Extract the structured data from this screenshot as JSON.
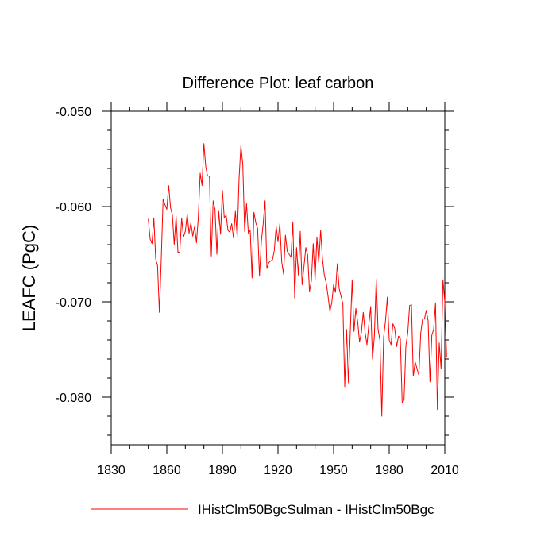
{
  "chart_data": {
    "type": "line",
    "title": "Difference Plot: leaf carbon",
    "xlabel": "",
    "ylabel": "LEAFC  (PgC)",
    "xlim": [
      1830,
      2010
    ],
    "ylim": [
      -0.085,
      -0.05
    ],
    "xticks": [
      1830,
      1860,
      1890,
      1920,
      1950,
      1980,
      2010
    ],
    "xtick_labels": [
      "1830",
      "1860",
      "1890",
      "1920",
      "1950",
      "1980",
      "2010"
    ],
    "yticks": [
      -0.05,
      -0.06,
      -0.07,
      -0.08
    ],
    "ytick_labels": [
      "-0.050",
      "-0.060",
      "-0.070",
      "-0.080"
    ],
    "grid": false,
    "legend_position": "bottom",
    "series": [
      {
        "name": "IHistClm50BgcSulman - IHistClm50Bgc",
        "color": "#ff0000",
        "x_start": 1850,
        "x_step": 1,
        "values": [
          -0.0613,
          -0.0634,
          -0.0639,
          -0.0612,
          -0.0655,
          -0.0662,
          -0.0711,
          -0.0655,
          -0.0592,
          -0.0598,
          -0.0603,
          -0.0578,
          -0.0601,
          -0.0609,
          -0.064,
          -0.061,
          -0.0648,
          -0.0648,
          -0.0612,
          -0.0632,
          -0.0626,
          -0.0608,
          -0.0628,
          -0.0617,
          -0.0631,
          -0.0621,
          -0.0638,
          -0.0611,
          -0.0565,
          -0.0578,
          -0.0534,
          -0.0558,
          -0.0568,
          -0.0568,
          -0.0652,
          -0.0594,
          -0.0603,
          -0.065,
          -0.0605,
          -0.0629,
          -0.0583,
          -0.0612,
          -0.0609,
          -0.0625,
          -0.0627,
          -0.0618,
          -0.0633,
          -0.0605,
          -0.0632,
          -0.057,
          -0.0536,
          -0.0556,
          -0.0626,
          -0.0597,
          -0.0628,
          -0.0625,
          -0.0675,
          -0.0606,
          -0.0617,
          -0.0623,
          -0.0673,
          -0.0637,
          -0.0618,
          -0.0594,
          -0.0665,
          -0.0659,
          -0.0657,
          -0.0656,
          -0.0646,
          -0.0621,
          -0.0637,
          -0.0618,
          -0.0658,
          -0.0671,
          -0.063,
          -0.0647,
          -0.065,
          -0.0653,
          -0.0616,
          -0.0696,
          -0.0643,
          -0.0672,
          -0.0626,
          -0.0682,
          -0.0663,
          -0.0643,
          -0.0651,
          -0.0689,
          -0.0678,
          -0.0639,
          -0.0677,
          -0.0632,
          -0.0659,
          -0.0625,
          -0.0655,
          -0.0672,
          -0.068,
          -0.0694,
          -0.071,
          -0.0701,
          -0.0682,
          -0.069,
          -0.066,
          -0.0686,
          -0.0694,
          -0.0702,
          -0.0789,
          -0.0729,
          -0.0785,
          -0.0731,
          -0.0677,
          -0.0731,
          -0.0707,
          -0.0721,
          -0.0742,
          -0.0732,
          -0.0711,
          -0.0732,
          -0.0745,
          -0.0724,
          -0.0705,
          -0.076,
          -0.0736,
          -0.0676,
          -0.0729,
          -0.074,
          -0.082,
          -0.0737,
          -0.072,
          -0.0695,
          -0.074,
          -0.0745,
          -0.0723,
          -0.0728,
          -0.0747,
          -0.0736,
          -0.0738,
          -0.0806,
          -0.0803,
          -0.0746,
          -0.0733,
          -0.0704,
          -0.0703,
          -0.0778,
          -0.0763,
          -0.077,
          -0.0777,
          -0.0733,
          -0.0718,
          -0.0718,
          -0.0709,
          -0.072,
          -0.0784,
          -0.0735,
          -0.0729,
          -0.0701,
          -0.0813,
          -0.0743,
          -0.077,
          -0.0677,
          -0.07,
          -0.0758
        ]
      }
    ]
  }
}
